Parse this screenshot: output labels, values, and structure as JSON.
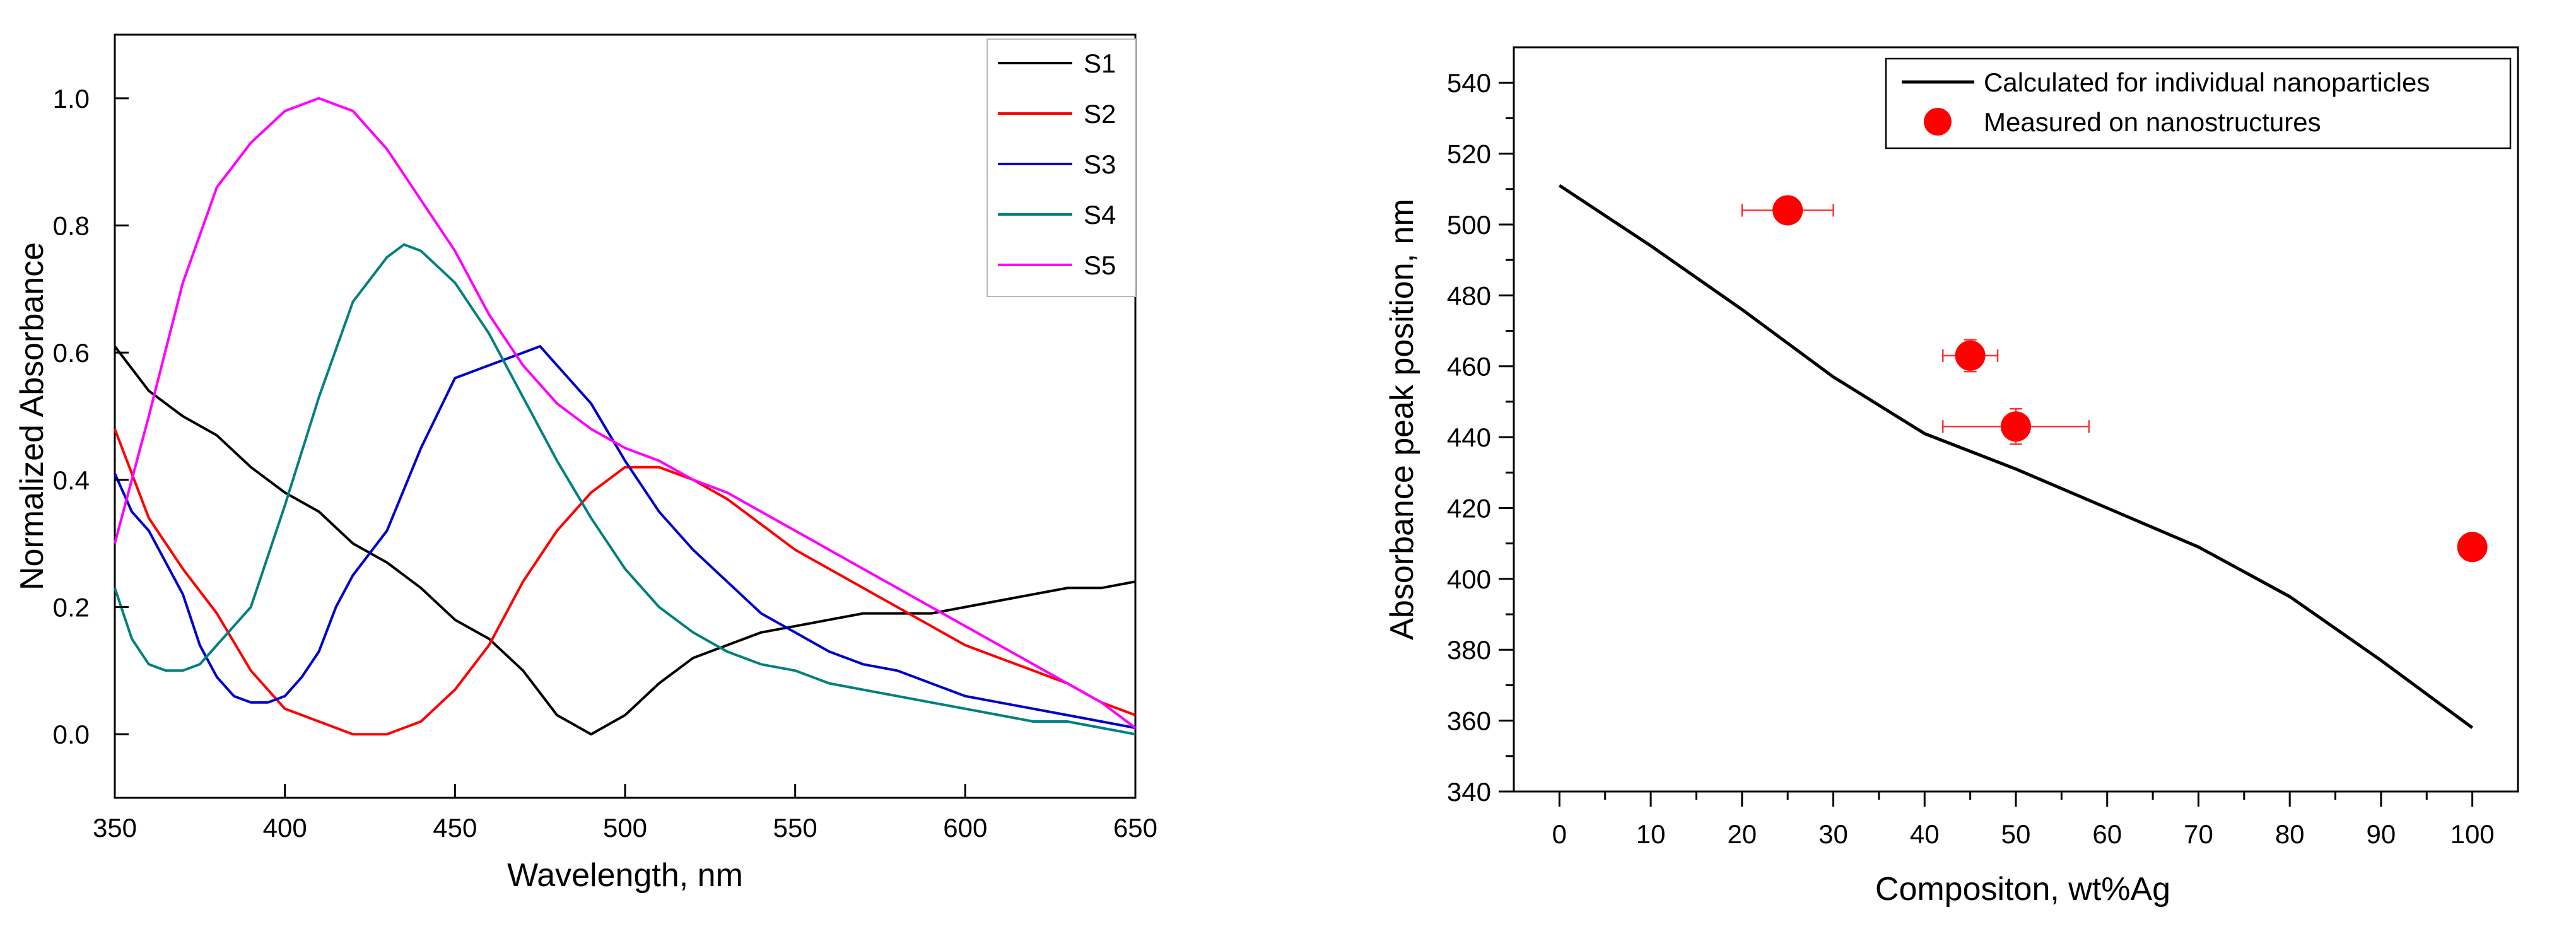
{
  "chart_data": [
    {
      "type": "line",
      "xlabel": "Wavelength, nm",
      "ylabel": "Normalized Absorbance",
      "xlim": [
        350,
        650
      ],
      "ylim": [
        -0.1,
        1.1
      ],
      "x_ticks": [
        350,
        400,
        450,
        500,
        550,
        600,
        650
      ],
      "x_tick_labels": [
        "350",
        "400",
        "450",
        "500",
        "550",
        "600",
        "650"
      ],
      "y_ticks": [
        0.0,
        0.2,
        0.4,
        0.6,
        0.8,
        1.0
      ],
      "y_tick_labels": [
        "0.0",
        "0.2",
        "0.4",
        "0.6",
        "0.8",
        "1.0"
      ],
      "legend_position": "top-right",
      "series": [
        {
          "name": "S1",
          "color": "#000000",
          "x": [
            350,
            360,
            370,
            380,
            390,
            400,
            410,
            420,
            430,
            440,
            450,
            460,
            470,
            480,
            490,
            500,
            510,
            520,
            530,
            540,
            550,
            560,
            570,
            580,
            590,
            600,
            610,
            620,
            630,
            640,
            650
          ],
          "y": [
            0.61,
            0.54,
            0.5,
            0.47,
            0.42,
            0.38,
            0.35,
            0.3,
            0.27,
            0.23,
            0.18,
            0.15,
            0.1,
            0.03,
            0.0,
            0.03,
            0.08,
            0.12,
            0.14,
            0.16,
            0.17,
            0.18,
            0.19,
            0.19,
            0.19,
            0.2,
            0.21,
            0.22,
            0.23,
            0.23,
            0.24
          ]
        },
        {
          "name": "S2",
          "color": "#ff0000",
          "x": [
            350,
            360,
            370,
            380,
            390,
            400,
            410,
            420,
            430,
            440,
            450,
            460,
            470,
            480,
            490,
            500,
            510,
            520,
            530,
            540,
            550,
            560,
            570,
            580,
            590,
            600,
            610,
            620,
            630,
            640,
            650
          ],
          "y": [
            0.48,
            0.34,
            0.26,
            0.19,
            0.1,
            0.04,
            0.02,
            0.0,
            0.0,
            0.02,
            0.07,
            0.14,
            0.24,
            0.32,
            0.38,
            0.42,
            0.42,
            0.4,
            0.37,
            0.33,
            0.29,
            0.26,
            0.23,
            0.2,
            0.17,
            0.14,
            0.12,
            0.1,
            0.08,
            0.05,
            0.03
          ]
        },
        {
          "name": "S3",
          "color": "#0000cc",
          "x": [
            350,
            355,
            360,
            365,
            370,
            375,
            380,
            385,
            390,
            395,
            400,
            405,
            410,
            415,
            420,
            430,
            440,
            450,
            460,
            470,
            475,
            480,
            490,
            500,
            510,
            520,
            530,
            540,
            550,
            560,
            570,
            580,
            590,
            600,
            610,
            620,
            630,
            640,
            650
          ],
          "y": [
            0.41,
            0.35,
            0.32,
            0.27,
            0.22,
            0.14,
            0.09,
            0.06,
            0.05,
            0.05,
            0.06,
            0.09,
            0.13,
            0.2,
            0.25,
            0.32,
            0.45,
            0.56,
            0.58,
            0.6,
            0.61,
            0.58,
            0.52,
            0.43,
            0.35,
            0.29,
            0.24,
            0.19,
            0.16,
            0.13,
            0.11,
            0.1,
            0.08,
            0.06,
            0.05,
            0.04,
            0.03,
            0.02,
            0.01
          ]
        },
        {
          "name": "S4",
          "color": "#008080",
          "x": [
            350,
            355,
            360,
            365,
            370,
            375,
            380,
            390,
            400,
            410,
            420,
            430,
            435,
            440,
            450,
            460,
            470,
            480,
            490,
            500,
            510,
            520,
            530,
            540,
            550,
            560,
            570,
            580,
            590,
            600,
            610,
            620,
            630,
            640,
            650
          ],
          "y": [
            0.23,
            0.15,
            0.11,
            0.1,
            0.1,
            0.11,
            0.14,
            0.2,
            0.36,
            0.53,
            0.68,
            0.75,
            0.77,
            0.76,
            0.71,
            0.63,
            0.53,
            0.43,
            0.34,
            0.26,
            0.2,
            0.16,
            0.13,
            0.11,
            0.1,
            0.08,
            0.07,
            0.06,
            0.05,
            0.04,
            0.03,
            0.02,
            0.02,
            0.01,
            0.0
          ]
        },
        {
          "name": "S5",
          "color": "#ff00ff",
          "x": [
            350,
            360,
            370,
            380,
            390,
            400,
            410,
            420,
            430,
            440,
            450,
            460,
            470,
            480,
            490,
            500,
            510,
            520,
            530,
            540,
            550,
            560,
            570,
            580,
            590,
            600,
            610,
            620,
            630,
            640,
            650
          ],
          "y": [
            0.3,
            0.5,
            0.71,
            0.86,
            0.93,
            0.98,
            1.0,
            0.98,
            0.92,
            0.84,
            0.76,
            0.66,
            0.58,
            0.52,
            0.48,
            0.45,
            0.43,
            0.4,
            0.38,
            0.35,
            0.32,
            0.29,
            0.26,
            0.23,
            0.2,
            0.17,
            0.14,
            0.11,
            0.08,
            0.05,
            0.01
          ]
        }
      ]
    },
    {
      "type": "line+scatter",
      "xlabel": "Compositon, wt%Ag",
      "ylabel": "Absorbance peak position, nm",
      "xlim": [
        -5,
        105
      ],
      "ylim": [
        340,
        550
      ],
      "x_ticks": [
        0,
        10,
        20,
        30,
        40,
        50,
        60,
        70,
        80,
        90,
        100
      ],
      "x_tick_labels": [
        "0",
        "10",
        "20",
        "30",
        "40",
        "50",
        "60",
        "70",
        "80",
        "90",
        "100"
      ],
      "y_ticks": [
        340,
        360,
        380,
        400,
        420,
        440,
        460,
        480,
        500,
        520,
        540
      ],
      "y_tick_labels": [
        "340",
        "360",
        "380",
        "400",
        "420",
        "440",
        "460",
        "480",
        "500",
        "520",
        "540"
      ],
      "legend_position": "top-right",
      "series": [
        {
          "name": "Calculated for individual nanoparticles",
          "kind": "line",
          "color": "#000000",
          "x": [
            0,
            10,
            20,
            30,
            40,
            50,
            60,
            70,
            80,
            90,
            100
          ],
          "y": [
            511,
            494,
            476,
            457,
            441,
            431,
            420,
            409,
            395,
            377,
            358
          ]
        },
        {
          "name": "Measured on nanostructures",
          "kind": "scatter",
          "color": "#ff0000",
          "errbar_color": "#ff3333",
          "x": [
            25,
            45,
            50,
            100
          ],
          "y": [
            504,
            463,
            443,
            409
          ],
          "xerr": [
            5,
            3,
            8,
            0
          ],
          "yerr": [
            0,
            4.5,
            5,
            0
          ]
        }
      ]
    }
  ]
}
